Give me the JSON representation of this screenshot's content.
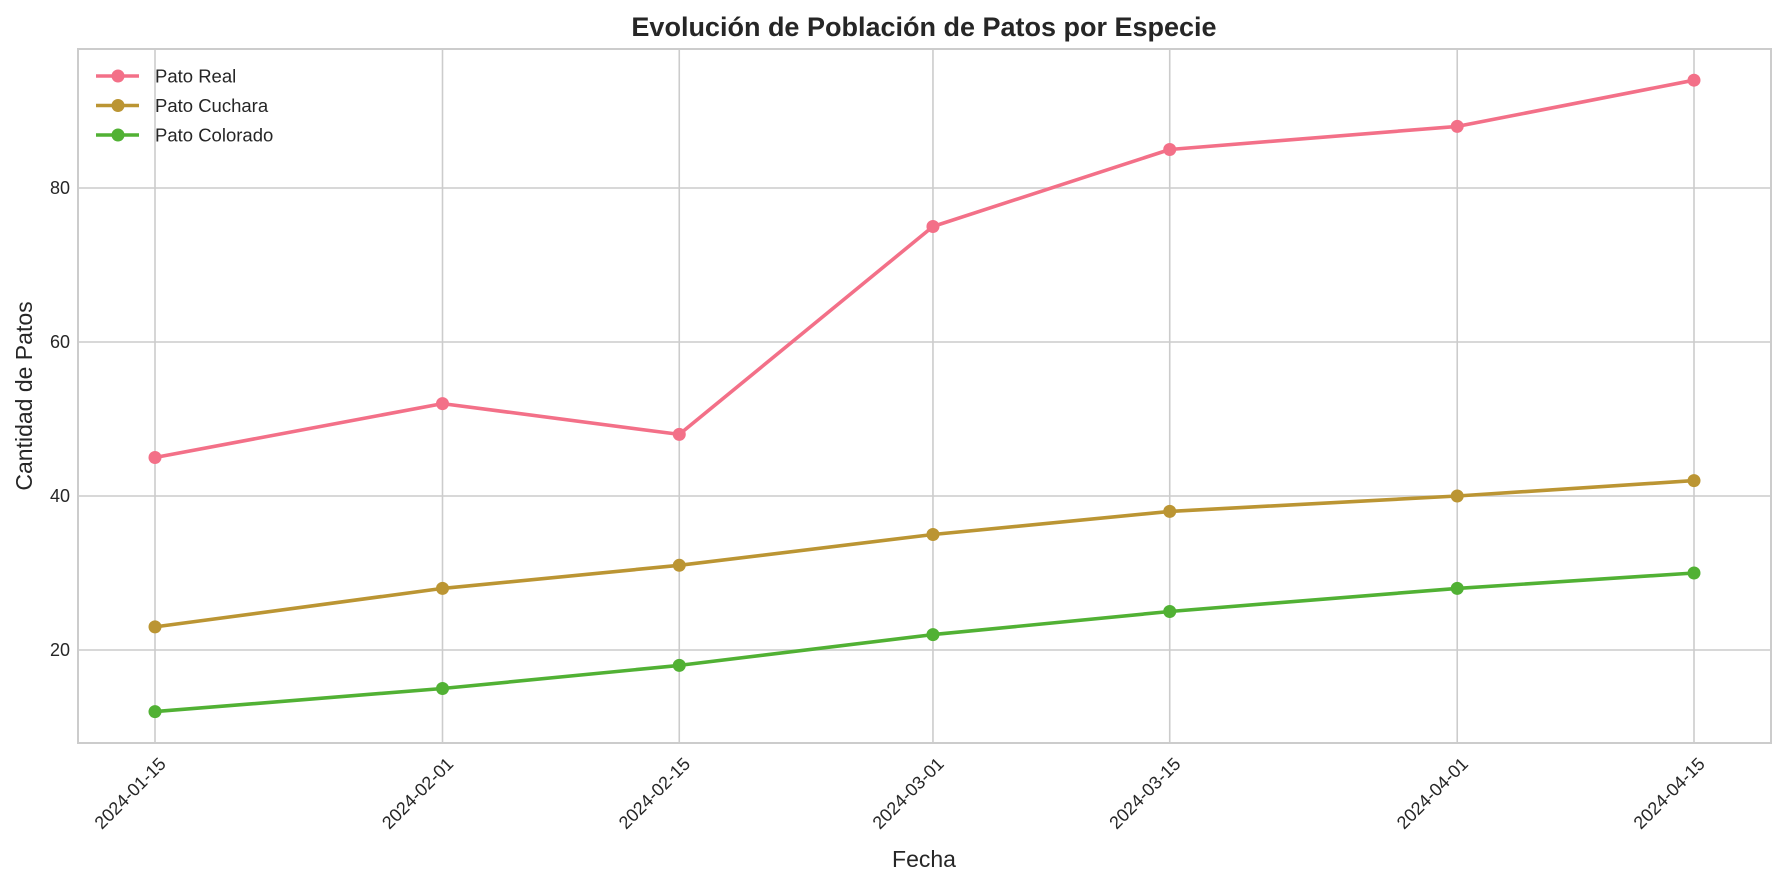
{
  "chart_data": {
    "type": "line",
    "title": "Evolución de Población de Patos por Especie",
    "xlabel": "Fecha",
    "ylabel": "Cantidad de Patos",
    "x": [
      "2024-01-15",
      "2024-02-01",
      "2024-02-15",
      "2024-03-01",
      "2024-03-15",
      "2024-04-01",
      "2024-04-15"
    ],
    "x_day_offsets": [
      0,
      17,
      31,
      46,
      60,
      77,
      91
    ],
    "series": [
      {
        "name": "Pato Real",
        "color": "#f37088",
        "values": [
          45,
          52,
          48,
          75,
          85,
          88,
          94
        ]
      },
      {
        "name": "Pato Cuchara",
        "color": "#bb9533",
        "values": [
          23,
          28,
          31,
          35,
          38,
          40,
          42
        ]
      },
      {
        "name": "Pato Colorado",
        "color": "#51b134",
        "values": [
          12,
          15,
          18,
          22,
          25,
          28,
          30
        ]
      }
    ],
    "yticks": [
      20,
      40,
      60,
      80
    ],
    "ylim": [
      7.9,
      98.1
    ],
    "grid": true,
    "legend_position": "upper left",
    "marker": "circle"
  }
}
